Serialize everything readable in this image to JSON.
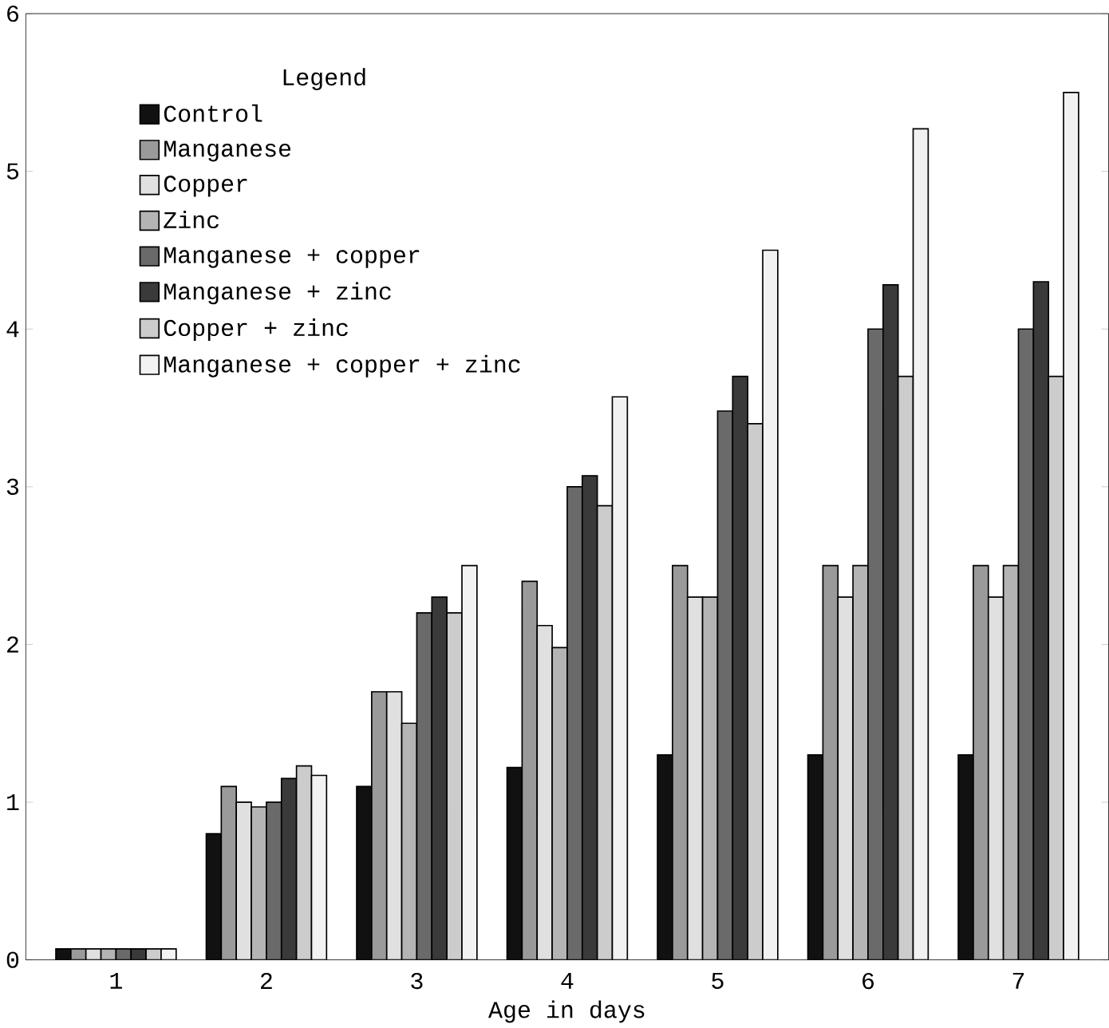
{
  "chart_data": {
    "type": "bar",
    "xlabel": "Age in days",
    "legend_title": "Legend",
    "legend": "top left",
    "categories": [
      "1",
      "2",
      "3",
      "4",
      "5",
      "6",
      "7"
    ],
    "ylim": [
      0,
      6
    ],
    "yticks": [
      0,
      1,
      2,
      3,
      4,
      5,
      6
    ],
    "series": [
      {
        "name": "Control",
        "color": "#111111",
        "values": [
          0.07,
          0.8,
          1.1,
          1.22,
          1.3,
          1.3,
          1.3
        ]
      },
      {
        "name": "Manganese",
        "color": "#9a9a9a",
        "values": [
          0.07,
          1.1,
          1.7,
          2.4,
          2.5,
          2.5,
          2.5
        ]
      },
      {
        "name": "Copper",
        "color": "#e0e0e0",
        "values": [
          0.07,
          1.0,
          1.7,
          2.12,
          2.3,
          2.3,
          2.3
        ]
      },
      {
        "name": "Zinc",
        "color": "#b4b4b4",
        "values": [
          0.07,
          0.97,
          1.5,
          1.98,
          2.3,
          2.5,
          2.5
        ]
      },
      {
        "name": "Manganese + copper",
        "color": "#6a6a6a",
        "values": [
          0.07,
          1.0,
          2.2,
          3.0,
          3.48,
          4.0,
          4.0
        ]
      },
      {
        "name": "Manganese + zinc",
        "color": "#3a3a3a",
        "values": [
          0.07,
          1.15,
          2.3,
          3.07,
          3.7,
          4.28,
          4.3
        ]
      },
      {
        "name": "Copper + zinc",
        "color": "#cccccc",
        "values": [
          0.07,
          1.23,
          2.2,
          2.88,
          3.4,
          3.7,
          3.7
        ]
      },
      {
        "name": "Manganese + copper + zinc",
        "color": "#f2f2f2",
        "values": [
          0.07,
          1.17,
          2.5,
          3.57,
          4.5,
          5.27,
          5.5
        ]
      }
    ]
  }
}
